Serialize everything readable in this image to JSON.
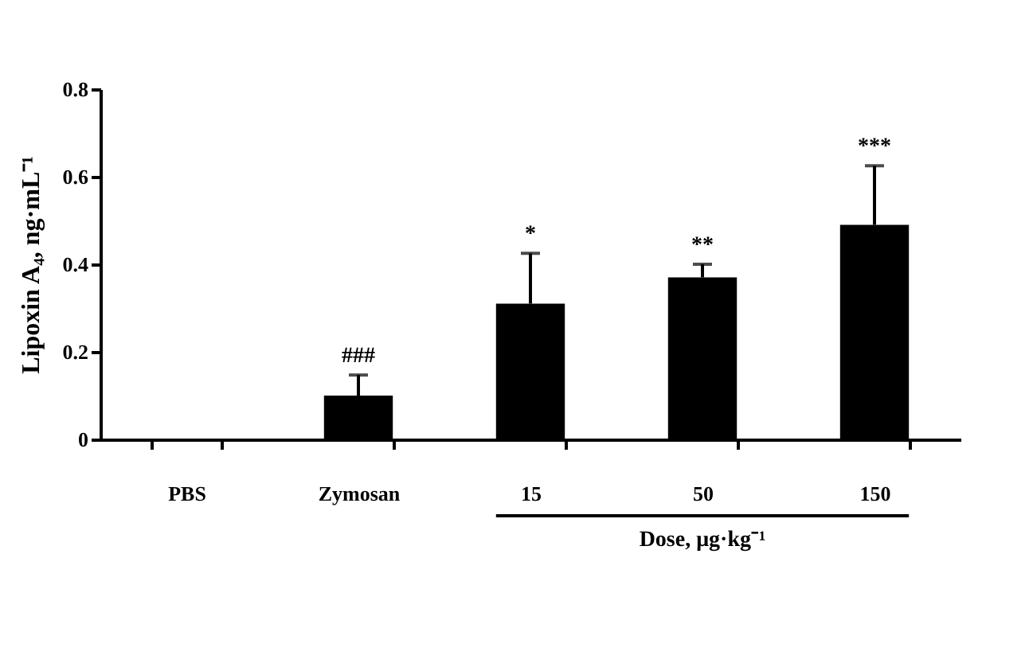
{
  "chart_data": {
    "type": "bar",
    "categories": [
      "PBS",
      "Zymosan",
      "15",
      "50",
      "150"
    ],
    "values": [
      0,
      0.1,
      0.31,
      0.37,
      0.49
    ],
    "errors": [
      null,
      0.047,
      0.115,
      0.03,
      0.135
    ],
    "color": "#000000",
    "xlabel": "Dose, μg·kg⁻¹",
    "ylabel": "Lipoxin A₄, ng·mL⁻¹",
    "ylim": [
      0,
      0.8
    ],
    "yticks": [
      0,
      0.2,
      0.4,
      0.6,
      0.8
    ],
    "annotations": [
      {
        "text": "###",
        "x": "Zymosan",
        "y": 0.147
      },
      {
        "text": "*",
        "x": "15",
        "y": 0.425
      },
      {
        "text": "**",
        "x": "50",
        "y": 0.4
      },
      {
        "text": "***",
        "x": "150",
        "y": 0.625
      }
    ],
    "grid": false
  }
}
